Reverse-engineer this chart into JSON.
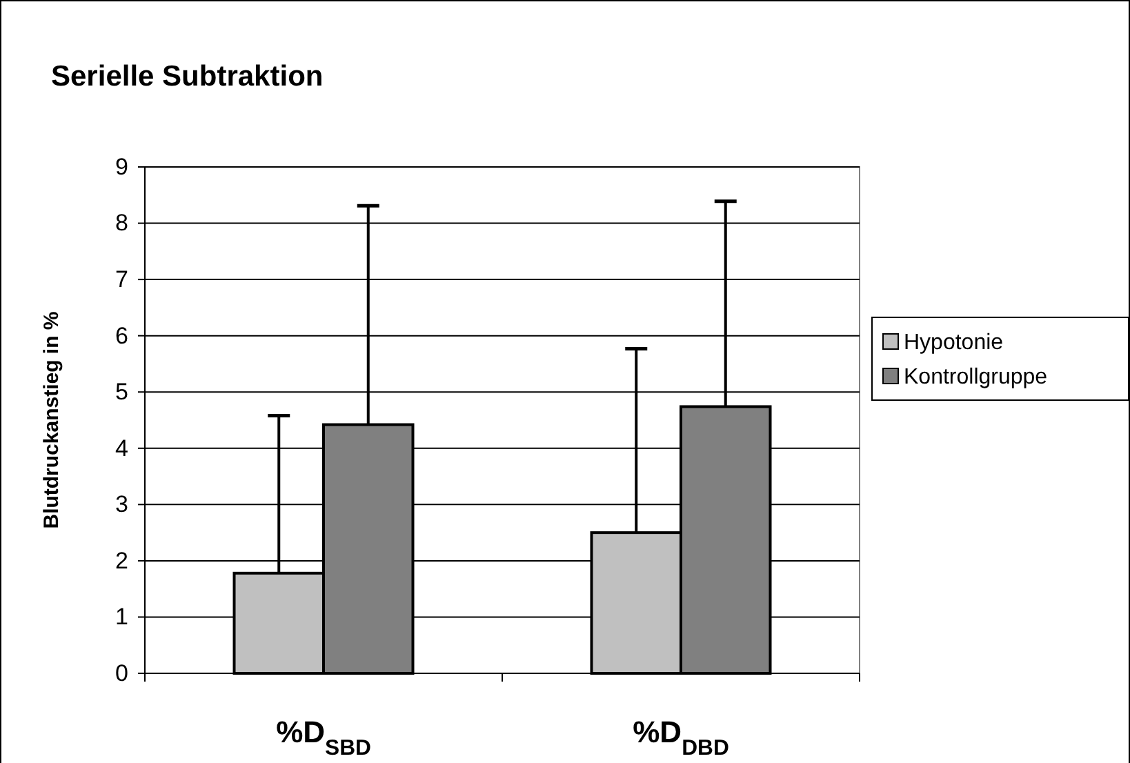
{
  "chart_data": {
    "type": "bar",
    "title": "Serielle Subtraktion",
    "ylabel": "Blutdruckanstieg in %",
    "categories": [
      "%D$_{SBD}$",
      "%D$_{DBD}$"
    ],
    "series": [
      {
        "name": "Hypotonie",
        "color": "#c0c0c0",
        "values": [
          1.78,
          2.5
        ],
        "errors": [
          [
            1.78,
            4.58
          ],
          [
            2.5,
            5.77
          ]
        ]
      },
      {
        "name": "Kontrollgruppe",
        "color": "#808080",
        "values": [
          4.42,
          4.74
        ],
        "errors": [
          [
            4.42,
            8.31
          ],
          [
            4.74,
            8.39
          ]
        ]
      }
    ],
    "ylim": [
      0,
      9
    ],
    "yticks": [
      0,
      1,
      2,
      3,
      4,
      5,
      6,
      7,
      8,
      9
    ],
    "grid": "y",
    "legend": "right"
  }
}
